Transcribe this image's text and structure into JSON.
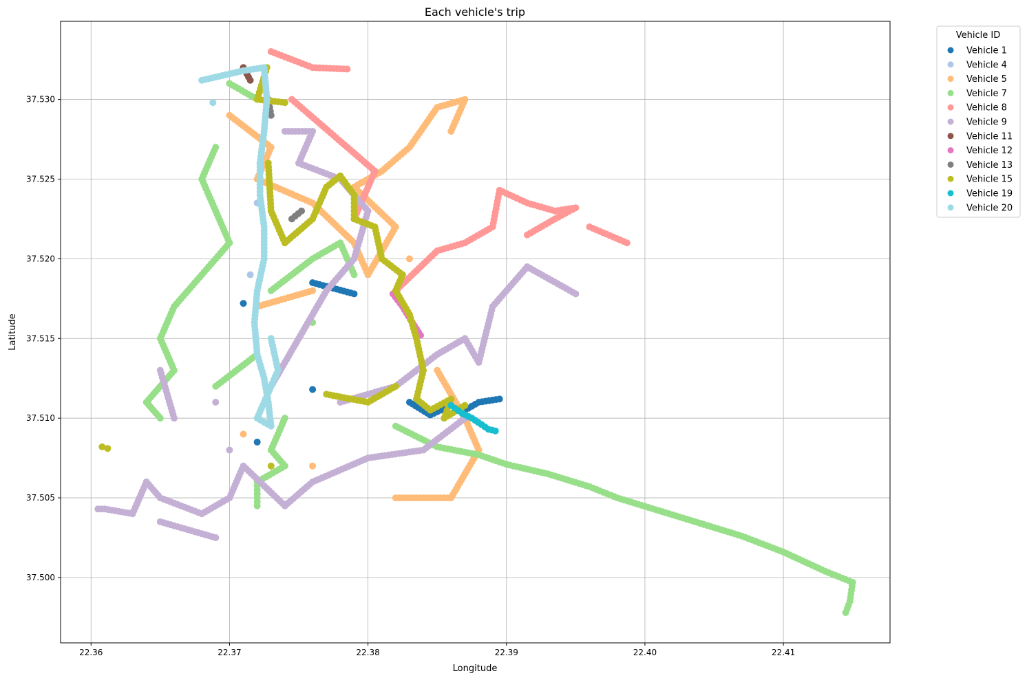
{
  "chart_data": {
    "type": "scatter",
    "title": "Each vehicle's trip",
    "xlabel": "Longitude",
    "ylabel": "Latitude",
    "xlim": [
      22.3578,
      22.4177
    ],
    "ylim": [
      37.4959,
      37.5349
    ],
    "xticks": [
      22.36,
      22.37,
      22.38,
      22.39,
      22.4,
      22.41
    ],
    "xtick_labels": [
      "22.36",
      "22.37",
      "22.38",
      "22.39",
      "22.40",
      "22.41"
    ],
    "yticks": [
      37.5,
      37.505,
      37.51,
      37.515,
      37.52,
      37.525,
      37.53
    ],
    "ytick_labels": [
      "37.500",
      "37.505",
      "37.510",
      "37.515",
      "37.520",
      "37.525",
      "37.530"
    ],
    "grid": true,
    "legend_title": "Vehicle ID",
    "legend_position": "outside-top-right",
    "series": [
      {
        "name": "Vehicle 1",
        "color": "#1f77b4",
        "points": [
          [
            22.371,
            37.5172
          ],
          [
            22.376,
            37.5185
          ],
          [
            22.379,
            37.5178
          ],
          [
            22.383,
            37.511
          ],
          [
            22.3845,
            37.5102
          ],
          [
            22.386,
            37.5108
          ],
          [
            22.387,
            37.5105
          ],
          [
            22.388,
            37.511
          ],
          [
            22.3895,
            37.5112
          ],
          [
            22.376,
            37.5118
          ],
          [
            22.372,
            37.5085
          ]
        ]
      },
      {
        "name": "Vehicle 4",
        "color": "#aec7e8",
        "points": [
          [
            22.372,
            37.5235
          ],
          [
            22.3715,
            37.519
          ]
        ]
      },
      {
        "name": "Vehicle 5",
        "color": "#ffbb78",
        "points": [
          [
            22.37,
            37.529
          ],
          [
            22.373,
            37.527
          ],
          [
            22.372,
            37.525
          ],
          [
            22.376,
            37.5235
          ],
          [
            22.379,
            37.521
          ],
          [
            22.38,
            37.519
          ],
          [
            22.382,
            37.522
          ],
          [
            22.379,
            37.5245
          ],
          [
            22.381,
            37.5255
          ],
          [
            22.383,
            37.527
          ],
          [
            22.385,
            37.5295
          ],
          [
            22.387,
            37.53
          ],
          [
            22.386,
            37.528
          ],
          [
            22.383,
            37.52
          ],
          [
            22.376,
            37.518
          ],
          [
            22.372,
            37.517
          ],
          [
            22.385,
            37.513
          ],
          [
            22.387,
            37.51
          ],
          [
            22.388,
            37.508
          ],
          [
            22.386,
            37.505
          ],
          [
            22.382,
            37.505
          ],
          [
            22.376,
            37.507
          ],
          [
            22.371,
            37.509
          ]
        ]
      },
      {
        "name": "Vehicle 7",
        "color": "#98df8a",
        "points": [
          [
            22.37,
            37.531
          ],
          [
            22.372,
            37.53
          ],
          [
            22.369,
            37.527
          ],
          [
            22.368,
            37.525
          ],
          [
            22.369,
            37.523
          ],
          [
            22.37,
            37.521
          ],
          [
            22.368,
            37.519
          ],
          [
            22.366,
            37.517
          ],
          [
            22.365,
            37.515
          ],
          [
            22.366,
            37.513
          ],
          [
            22.364,
            37.511
          ],
          [
            22.365,
            37.51
          ],
          [
            22.369,
            37.512
          ],
          [
            22.372,
            37.514
          ],
          [
            22.373,
            37.518
          ],
          [
            22.376,
            37.52
          ],
          [
            22.378,
            37.521
          ],
          [
            22.379,
            37.519
          ],
          [
            22.376,
            37.516
          ],
          [
            22.374,
            37.51
          ],
          [
            22.373,
            37.508
          ],
          [
            22.374,
            37.507
          ],
          [
            22.372,
            37.506
          ],
          [
            22.372,
            37.5045
          ],
          [
            22.382,
            37.5095
          ],
          [
            22.385,
            37.5082
          ],
          [
            22.388,
            37.5077
          ],
          [
            22.39,
            37.5071
          ],
          [
            22.393,
            37.5065
          ],
          [
            22.396,
            37.5057
          ],
          [
            22.398,
            37.505
          ],
          [
            22.401,
            37.5042
          ],
          [
            22.404,
            37.5034
          ],
          [
            22.407,
            37.5026
          ],
          [
            22.41,
            37.5016
          ],
          [
            22.413,
            37.5004
          ],
          [
            22.415,
            37.4997
          ],
          [
            22.4148,
            37.4985
          ],
          [
            22.4145,
            37.4978
          ]
        ]
      },
      {
        "name": "Vehicle 8",
        "color": "#ff9896",
        "points": [
          [
            22.373,
            37.533
          ],
          [
            22.376,
            37.532
          ],
          [
            22.3785,
            37.5319
          ],
          [
            22.3745,
            37.53
          ],
          [
            22.3765,
            37.5285
          ],
          [
            22.3785,
            37.527
          ],
          [
            22.3805,
            37.5255
          ],
          [
            22.379,
            37.5225
          ],
          [
            22.382,
            37.518
          ],
          [
            22.385,
            37.5205
          ],
          [
            22.387,
            37.521
          ],
          [
            22.389,
            37.522
          ],
          [
            22.3895,
            37.5243
          ],
          [
            22.3915,
            37.5235
          ],
          [
            22.3935,
            37.523
          ],
          [
            22.395,
            37.5232
          ],
          [
            22.3935,
            37.5225
          ],
          [
            22.3915,
            37.5215
          ],
          [
            22.396,
            37.522
          ],
          [
            22.3987,
            37.521
          ]
        ]
      },
      {
        "name": "Vehicle 9",
        "color": "#c5b0d5",
        "points": [
          [
            22.374,
            37.528
          ],
          [
            22.376,
            37.528
          ],
          [
            22.375,
            37.526
          ],
          [
            22.378,
            37.525
          ],
          [
            22.38,
            37.523
          ],
          [
            22.379,
            37.52
          ],
          [
            22.377,
            37.518
          ],
          [
            22.375,
            37.515
          ],
          [
            22.373,
            37.512
          ],
          [
            22.378,
            37.511
          ],
          [
            22.382,
            37.512
          ],
          [
            22.385,
            37.514
          ],
          [
            22.387,
            37.515
          ],
          [
            22.388,
            37.5135
          ],
          [
            22.389,
            37.517
          ],
          [
            22.3915,
            37.5195
          ],
          [
            22.395,
            37.5178
          ],
          [
            22.387,
            37.51
          ],
          [
            22.384,
            37.508
          ],
          [
            22.38,
            37.5075
          ],
          [
            22.376,
            37.506
          ],
          [
            22.374,
            37.5045
          ],
          [
            22.371,
            37.507
          ],
          [
            22.37,
            37.505
          ],
          [
            22.368,
            37.504
          ],
          [
            22.365,
            37.505
          ],
          [
            22.364,
            37.506
          ],
          [
            22.363,
            37.504
          ],
          [
            22.361,
            37.5043
          ],
          [
            22.3605,
            37.5043
          ],
          [
            22.365,
            37.5035
          ],
          [
            22.369,
            37.5025
          ],
          [
            22.37,
            37.508
          ],
          [
            22.366,
            37.51
          ],
          [
            22.365,
            37.513
          ],
          [
            22.369,
            37.511
          ]
        ]
      },
      {
        "name": "Vehicle 11",
        "color": "#8c564b",
        "points": [
          [
            22.371,
            37.532
          ],
          [
            22.3715,
            37.5312
          ]
        ]
      },
      {
        "name": "Vehicle 12",
        "color": "#e377c2",
        "points": [
          [
            22.3818,
            37.5178
          ],
          [
            22.3825,
            37.517
          ],
          [
            22.3832,
            37.516
          ],
          [
            22.3838,
            37.5152
          ]
        ]
      },
      {
        "name": "Vehicle 13",
        "color": "#7f7f7f",
        "points": [
          [
            22.3728,
            37.53
          ],
          [
            22.373,
            37.529
          ],
          [
            22.3745,
            37.5225
          ],
          [
            22.3752,
            37.523
          ]
        ]
      },
      {
        "name": "Vehicle 15",
        "color": "#bcbd22",
        "points": [
          [
            22.3727,
            37.532
          ],
          [
            22.372,
            37.53
          ],
          [
            22.374,
            37.5298
          ],
          [
            22.3728,
            37.526
          ],
          [
            22.373,
            37.523
          ],
          [
            22.374,
            37.521
          ],
          [
            22.376,
            37.5225
          ],
          [
            22.377,
            37.5245
          ],
          [
            22.378,
            37.5252
          ],
          [
            22.379,
            37.524
          ],
          [
            22.379,
            37.5225
          ],
          [
            22.3805,
            37.522
          ],
          [
            22.381,
            37.52
          ],
          [
            22.3825,
            37.519
          ],
          [
            22.382,
            37.518
          ],
          [
            22.383,
            37.5165
          ],
          [
            22.3835,
            37.515
          ],
          [
            22.384,
            37.513
          ],
          [
            22.3835,
            37.5112
          ],
          [
            22.3845,
            37.5105
          ],
          [
            22.386,
            37.5112
          ],
          [
            22.3855,
            37.51
          ],
          [
            22.387,
            37.5108
          ],
          [
            22.382,
            37.512
          ],
          [
            22.38,
            37.511
          ],
          [
            22.377,
            37.5115
          ],
          [
            22.373,
            37.507
          ],
          [
            22.3608,
            37.5082
          ],
          [
            22.3612,
            37.5081
          ]
        ]
      },
      {
        "name": "Vehicle 19",
        "color": "#17becf",
        "points": [
          [
            22.386,
            37.5108
          ],
          [
            22.3868,
            37.5103
          ],
          [
            22.3875,
            37.51
          ],
          [
            22.3882,
            37.5096
          ],
          [
            22.3887,
            37.5093
          ],
          [
            22.3892,
            37.5092
          ]
        ]
      },
      {
        "name": "Vehicle 20",
        "color": "#9edae5",
        "points": [
          [
            22.368,
            37.5312
          ],
          [
            22.37,
            37.5316
          ],
          [
            22.371,
            37.5318
          ],
          [
            22.3725,
            37.532
          ],
          [
            22.3727,
            37.53
          ],
          [
            22.3725,
            37.528
          ],
          [
            22.3722,
            37.526
          ],
          [
            22.3722,
            37.524
          ],
          [
            22.3725,
            37.522
          ],
          [
            22.3725,
            37.52
          ],
          [
            22.372,
            37.518
          ],
          [
            22.3718,
            37.516
          ],
          [
            22.372,
            37.514
          ],
          [
            22.3725,
            37.5125
          ],
          [
            22.3728,
            37.511
          ],
          [
            22.373,
            37.5095
          ],
          [
            22.372,
            37.51
          ],
          [
            22.3735,
            37.513
          ],
          [
            22.373,
            37.515
          ],
          [
            22.3688,
            37.5298
          ]
        ]
      }
    ]
  }
}
